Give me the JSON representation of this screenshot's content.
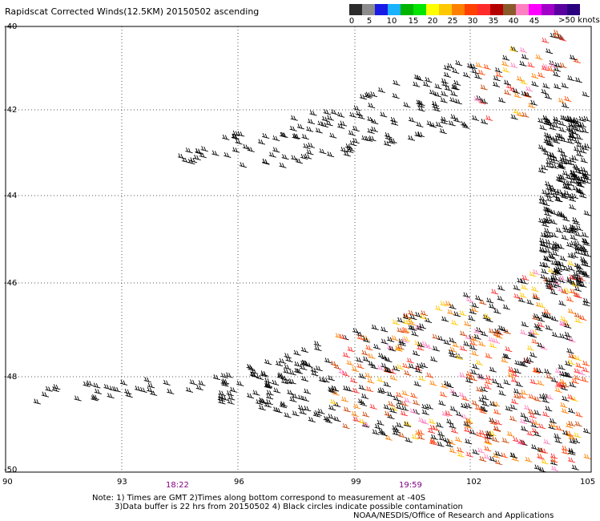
{
  "title": "Rapidscat Corrected Winds(12.5KM) 20150502 ascending",
  "legend": {
    "colors": [
      "#2b2b2b",
      "#8c8c8c",
      "#1a1ae6",
      "#1ab2ff",
      "#00b400",
      "#00e600",
      "#ffff00",
      "#ffc800",
      "#ff8000",
      "#ff4000",
      "#ff2a2a",
      "#b40000",
      "#8b5a2b",
      "#ff80c0",
      "#ff00ff",
      "#a000c8",
      "#5a00a0",
      "#2a0080"
    ],
    "ticks": [
      "0",
      "5",
      "10",
      "15",
      "20",
      "25",
      "30",
      "35",
      "40",
      "45"
    ],
    "unit": ">50 knots"
  },
  "axes": {
    "lat_labels": [
      "-40",
      "-42",
      "-44",
      "-46",
      "-48",
      "-50"
    ],
    "lon_labels": [
      "90",
      "93",
      "96",
      "99",
      "102",
      "105"
    ]
  },
  "times": {
    "t1": "18:22",
    "t2": "19:59"
  },
  "notes": {
    "line1": "Note: 1) Times are GMT 2)Times along bottom correspond to measurement at -40S",
    "line2": "3)Data buffer is 22 hrs from 20150502 4) Black circles indicate possible contamination",
    "line3": "NOAA/NESDIS/Office of Research and Applications"
  }
}
